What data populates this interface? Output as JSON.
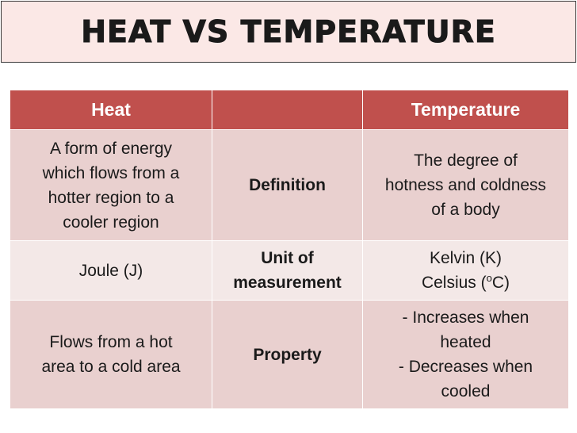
{
  "title": "HEAT VS TEMPERATURE",
  "table": {
    "header": {
      "left": "Heat",
      "right": "Temperature"
    },
    "rows": [
      {
        "left": [
          "A form of energy",
          "which flows from a",
          "hotter region to a",
          "cooler region"
        ],
        "middle": [
          "Definition"
        ],
        "right": [
          "The degree of",
          "hotness and coldness",
          "of a body"
        ]
      },
      {
        "left": [
          "Joule (J)"
        ],
        "middle": [
          "Unit of",
          "measurement"
        ],
        "right": [
          "Kelvin (K)",
          [
            "Celsius (",
            "o",
            "C)"
          ]
        ]
      },
      {
        "left": [
          "Flows from a hot",
          "area to a cold area"
        ],
        "middle": [
          "Property"
        ],
        "right": [
          "- Increases when",
          "heated",
          "- Decreases when",
          "cooled"
        ]
      }
    ]
  }
}
